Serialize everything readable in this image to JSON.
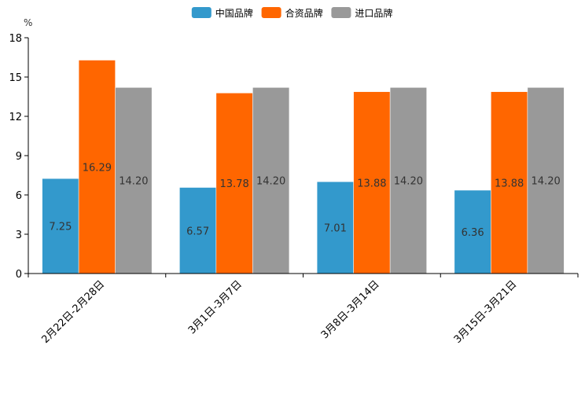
{
  "chart_data": {
    "type": "bar",
    "unit_label": "%",
    "categories": [
      "2月22日-2月28日",
      "3月1日-3月7日",
      "3月8日-3月14日",
      "3月15日-3月21日"
    ],
    "series": [
      {
        "name": "中国品牌",
        "color": "#3399cc",
        "values": [
          7.25,
          6.57,
          7.01,
          6.36
        ],
        "labels": [
          "7.25",
          "6.57",
          "7.01",
          "6.36"
        ]
      },
      {
        "name": "合资品牌",
        "color": "#ff6600",
        "values": [
          16.29,
          13.78,
          13.88,
          13.88
        ],
        "labels": [
          "16.29",
          "13.78",
          "13.88",
          "13.88"
        ]
      },
      {
        "name": "进口品牌",
        "color": "#999999",
        "values": [
          14.2,
          14.2,
          14.2,
          14.2
        ],
        "labels": [
          "14.20",
          "14.20",
          "14.20",
          "14.20"
        ]
      }
    ],
    "ylim": [
      0,
      18
    ],
    "yticks": [
      0,
      3,
      6,
      9,
      12,
      15,
      18
    ],
    "legend_position": "top-center",
    "grid": false
  }
}
